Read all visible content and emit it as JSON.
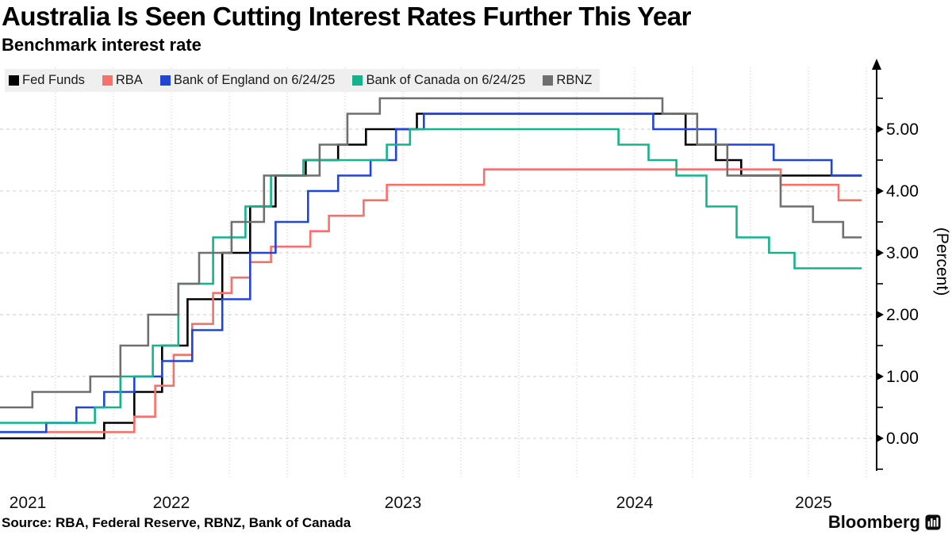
{
  "header": {
    "title": "Australia Is Seen Cutting Interest Rates Further This Year",
    "subtitle": "Benchmark interest rate"
  },
  "footer": {
    "source": "Source: RBA, Federal Reserve, RBNZ, Bank of Canada",
    "bloomberg": "Bloomberg"
  },
  "chart_data": {
    "type": "line",
    "step": true,
    "title": "Australia Is Seen Cutting Interest Rates Further This Year",
    "subtitle": "Benchmark interest rate",
    "ylabel": "(Percent)",
    "xlabel": "",
    "ylim": [
      -0.5,
      6.0
    ],
    "xlim": [
      2021.76,
      2025.55
    ],
    "series_end_x": 2025.48,
    "legend_position": "top-left",
    "grid": {
      "vertical": "quarterly dotted",
      "horizontal": "dashed at majors"
    },
    "x_labels": [
      {
        "label": "2021",
        "year": 2021
      },
      {
        "label": "2022",
        "year": 2022
      },
      {
        "label": "2023",
        "year": 2023
      },
      {
        "label": "2024",
        "year": 2024
      },
      {
        "label": "2025",
        "year": 2025
      }
    ],
    "y_ticks": [
      {
        "label": "0.00",
        "value": 0
      },
      {
        "label": "1.00",
        "value": 1
      },
      {
        "label": "2.00",
        "value": 2
      },
      {
        "label": "3.00",
        "value": 3
      },
      {
        "label": "4.00",
        "value": 4
      },
      {
        "label": "5.00",
        "value": 5
      }
    ],
    "y_minor_ticks": [
      -0.5,
      0.5,
      1.5,
      2.5,
      3.5,
      4.5,
      5.5
    ],
    "series": [
      {
        "name": "Fed Funds",
        "color": "#000000",
        "points": [
          [
            2021.76,
            0.0
          ],
          [
            2022.21,
            0.25
          ],
          [
            2022.34,
            0.75
          ],
          [
            2022.46,
            1.5
          ],
          [
            2022.57,
            2.25
          ],
          [
            2022.72,
            3.0
          ],
          [
            2022.84,
            3.75
          ],
          [
            2022.95,
            4.25
          ],
          [
            2023.08,
            4.5
          ],
          [
            2023.22,
            4.75
          ],
          [
            2023.34,
            5.0
          ],
          [
            2023.56,
            5.25
          ],
          [
            2024.72,
            4.75
          ],
          [
            2024.85,
            4.5
          ],
          [
            2024.96,
            4.25
          ]
        ]
      },
      {
        "name": "RBA",
        "color": "#f7716b",
        "points": [
          [
            2021.76,
            0.1
          ],
          [
            2022.34,
            0.35
          ],
          [
            2022.43,
            0.85
          ],
          [
            2022.51,
            1.35
          ],
          [
            2022.59,
            1.85
          ],
          [
            2022.68,
            2.35
          ],
          [
            2022.76,
            2.6
          ],
          [
            2022.84,
            2.85
          ],
          [
            2022.93,
            3.1
          ],
          [
            2023.1,
            3.35
          ],
          [
            2023.18,
            3.6
          ],
          [
            2023.33,
            3.85
          ],
          [
            2023.43,
            4.1
          ],
          [
            2023.85,
            4.35
          ],
          [
            2025.13,
            4.1
          ],
          [
            2025.38,
            3.85
          ]
        ]
      },
      {
        "name": "Bank of England on 6/24/25",
        "color": "#2145d6",
        "points": [
          [
            2021.76,
            0.1
          ],
          [
            2021.96,
            0.25
          ],
          [
            2022.09,
            0.5
          ],
          [
            2022.21,
            0.75
          ],
          [
            2022.34,
            1.0
          ],
          [
            2022.46,
            1.25
          ],
          [
            2022.59,
            1.75
          ],
          [
            2022.72,
            2.25
          ],
          [
            2022.84,
            3.0
          ],
          [
            2022.95,
            3.5
          ],
          [
            2023.09,
            4.0
          ],
          [
            2023.22,
            4.25
          ],
          [
            2023.36,
            4.5
          ],
          [
            2023.47,
            5.0
          ],
          [
            2023.59,
            5.25
          ],
          [
            2024.58,
            5.0
          ],
          [
            2024.85,
            4.75
          ],
          [
            2025.1,
            4.5
          ],
          [
            2025.35,
            4.25
          ]
        ]
      },
      {
        "name": "Bank of Canada on 6/24/25",
        "color": "#13b38c",
        "points": [
          [
            2021.76,
            0.25
          ],
          [
            2022.17,
            0.5
          ],
          [
            2022.28,
            1.0
          ],
          [
            2022.42,
            1.5
          ],
          [
            2022.53,
            2.5
          ],
          [
            2022.68,
            3.25
          ],
          [
            2022.82,
            3.75
          ],
          [
            2022.93,
            4.25
          ],
          [
            2023.07,
            4.5
          ],
          [
            2023.43,
            4.75
          ],
          [
            2023.53,
            5.0
          ],
          [
            2024.43,
            4.75
          ],
          [
            2024.56,
            4.5
          ],
          [
            2024.68,
            4.25
          ],
          [
            2024.81,
            3.75
          ],
          [
            2024.94,
            3.25
          ],
          [
            2025.08,
            3.0
          ],
          [
            2025.19,
            2.75
          ]
        ]
      },
      {
        "name": "RBNZ",
        "color": "#6f6f6f",
        "points": [
          [
            2021.76,
            0.5
          ],
          [
            2021.9,
            0.75
          ],
          [
            2022.15,
            1.0
          ],
          [
            2022.28,
            1.5
          ],
          [
            2022.4,
            2.0
          ],
          [
            2022.53,
            2.5
          ],
          [
            2022.62,
            3.0
          ],
          [
            2022.76,
            3.5
          ],
          [
            2022.9,
            4.25
          ],
          [
            2023.14,
            4.75
          ],
          [
            2023.26,
            5.25
          ],
          [
            2023.4,
            5.5
          ],
          [
            2024.62,
            5.25
          ],
          [
            2024.77,
            4.75
          ],
          [
            2024.9,
            4.25
          ],
          [
            2025.13,
            3.75
          ],
          [
            2025.27,
            3.5
          ],
          [
            2025.4,
            3.25
          ]
        ]
      }
    ]
  }
}
